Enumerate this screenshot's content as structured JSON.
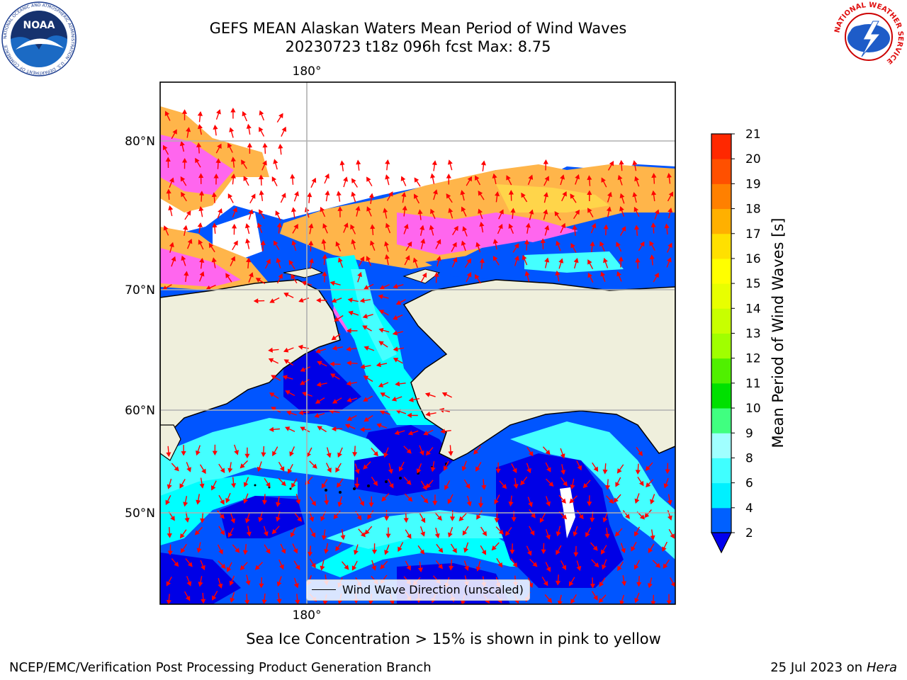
{
  "title": {
    "line1": "GEFS MEAN Alaskan Waters Mean Period of Wind Waves",
    "line2": "20230723 t18z 096h fcst   Max: 8.75"
  },
  "map": {
    "lon_labels": {
      "top": "180°",
      "bottom": "180°"
    },
    "lat_labels": [
      "80°N",
      "70°N",
      "60°N",
      "50°N"
    ],
    "legend_label": "Wind Wave Direction (unscaled)",
    "colors": {
      "land": "#efefdc",
      "level_2_4": "#0055ff",
      "level_below_2": "#0000e6",
      "level_4_6": "#00ffff",
      "level_6_8": "#44ffff",
      "ice_pink": "#ff66ee",
      "ice_orange": "#ffb54a",
      "ice_yellow": "#ffd54a",
      "arrow": "#ff0000",
      "grid": "#b0b0b0"
    }
  },
  "colorbar": {
    "label": "Mean Period of Wind Waves [s]",
    "ticks": [
      "2",
      "4",
      "6",
      "8",
      "9",
      "10",
      "11",
      "12",
      "13",
      "14",
      "15",
      "16",
      "17",
      "18",
      "19",
      "20",
      "21"
    ],
    "colors": [
      "#0060ff",
      "#00f0ff",
      "#40ffff",
      "#a0ffff",
      "#40ff80",
      "#00e000",
      "#50f000",
      "#a0ff00",
      "#c8ff00",
      "#e8ff00",
      "#ffff00",
      "#ffe000",
      "#ffb000",
      "#ff8000",
      "#ff5000",
      "#ff2800",
      "#ff0000"
    ],
    "extend_color": "#0000ee"
  },
  "note": "Sea Ice Concentration > 15% is shown in pink to yellow",
  "footer": {
    "left": "NCEP/EMC/Verification Post Processing Product Generation Branch",
    "date": "25 Jul 2023 on ",
    "host": "Hera"
  },
  "logos": {
    "noaa_text": "NOAA",
    "noaa_ring": "NATIONAL OCEANIC AND ATMOSPHERIC ADMINISTRATION · U.S. DEPARTMENT OF COMMERCE",
    "nws_ring": "NATIONAL WEATHER SERVICE"
  }
}
